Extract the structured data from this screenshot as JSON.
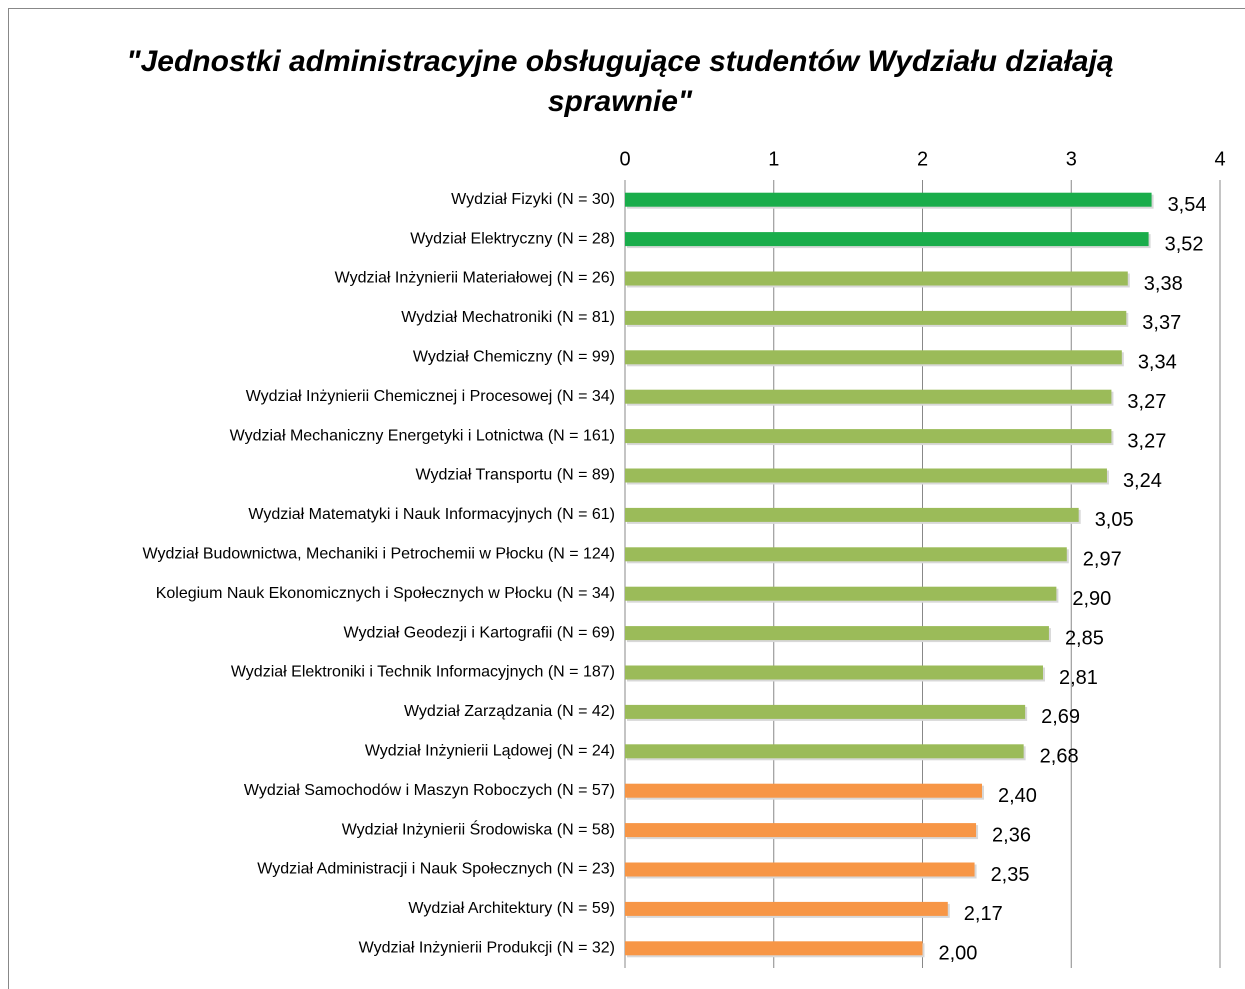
{
  "chart_data": {
    "type": "bar",
    "orientation": "horizontal",
    "title": "\"Jednostki administracyjne obsługujące studentów Wydziału działają sprawnie\"",
    "categories": [
      "Wydział Fizyki (N = 30)",
      "Wydział Elektryczny (N = 28)",
      "Wydział Inżynierii Materiałowej (N = 26)",
      "Wydział Mechatroniki (N = 81)",
      "Wydział Chemiczny (N = 99)",
      "Wydział Inżynierii Chemicznej i Procesowej (N = 34)",
      "Wydział Mechaniczny Energetyki i Lotnictwa (N = 161)",
      "Wydział Transportu (N = 89)",
      "Wydział Matematyki i Nauk Informacyjnych (N = 61)",
      "Wydział Budownictwa, Mechaniki i Petrochemii w Płocku (N = 124)",
      "Kolegium Nauk Ekonomicznych i Społecznych w Płocku (N = 34)",
      "Wydział Geodezji i Kartografii (N = 69)",
      "Wydział Elektroniki i Technik Informacyjnych (N = 187)",
      "Wydział Zarządzania (N = 42)",
      "Wydział Inżynierii Lądowej (N = 24)",
      "Wydział Samochodów i Maszyn Roboczych (N = 57)",
      "Wydział Inżynierii Środowiska (N = 58)",
      "Wydział Administracji i Nauk Społecznych (N = 23)",
      "Wydział Architektury (N = 59)",
      "Wydział Inżynierii Produkcji (N = 32)"
    ],
    "values": [
      3.54,
      3.52,
      3.38,
      3.37,
      3.34,
      3.27,
      3.27,
      3.24,
      3.05,
      2.97,
      2.9,
      2.85,
      2.81,
      2.69,
      2.68,
      2.4,
      2.36,
      2.35,
      2.17,
      2.0
    ],
    "value_labels": [
      "3,54",
      "3,52",
      "3,38",
      "3,37",
      "3,34",
      "3,27",
      "3,27",
      "3,24",
      "3,05",
      "2,97",
      "2,90",
      "2,85",
      "2,81",
      "2,69",
      "2,68",
      "2,40",
      "2,36",
      "2,35",
      "2,17",
      "2,00"
    ],
    "colors": [
      "#1aad4b",
      "#1aad4b",
      "#9bbb59",
      "#9bbb59",
      "#9bbb59",
      "#9bbb59",
      "#9bbb59",
      "#9bbb59",
      "#9bbb59",
      "#9bbb59",
      "#9bbb59",
      "#9bbb59",
      "#9bbb59",
      "#9bbb59",
      "#9bbb59",
      "#f79646",
      "#f79646",
      "#f79646",
      "#f79646",
      "#f79646"
    ],
    "xlim": [
      0,
      4
    ],
    "xticks": [
      0,
      1,
      2,
      3,
      4
    ],
    "grid": true
  }
}
